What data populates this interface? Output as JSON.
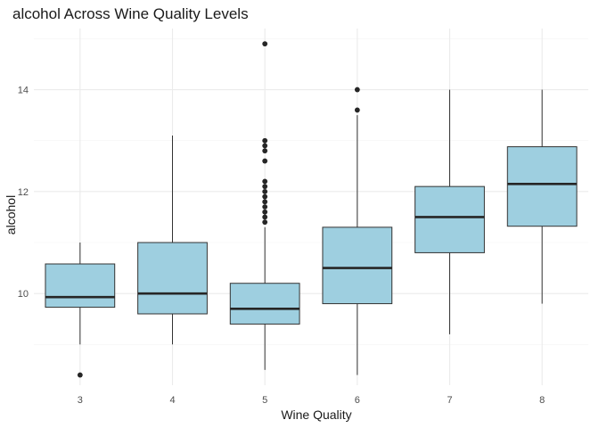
{
  "chart_data": {
    "type": "boxplot",
    "title": "alcohol Across Wine Quality Levels",
    "xlabel": "Wine Quality",
    "ylabel": "alcohol",
    "categories": [
      "3",
      "4",
      "5",
      "6",
      "7",
      "8"
    ],
    "ylim": [
      8.2,
      15.2
    ],
    "yticks": [
      10,
      12,
      14
    ],
    "yticks_minor": [
      9,
      11,
      13,
      15
    ],
    "grid": true,
    "fill_color": "#9ecfe0",
    "line_color": "#333333",
    "boxes": [
      {
        "category": "3",
        "whisker_low": 9.0,
        "q1": 9.73,
        "median": 9.93,
        "q3": 10.58,
        "whisker_high": 11.0,
        "outliers": [
          8.4
        ]
      },
      {
        "category": "4",
        "whisker_low": 9.0,
        "q1": 9.6,
        "median": 10.0,
        "q3": 11.0,
        "whisker_high": 13.1,
        "outliers": []
      },
      {
        "category": "5",
        "whisker_low": 8.5,
        "q1": 9.4,
        "median": 9.7,
        "q3": 10.2,
        "whisker_high": 11.3,
        "outliers": [
          11.4,
          11.5,
          11.6,
          11.7,
          11.8,
          11.9,
          12.0,
          12.1,
          12.2,
          12.6,
          12.8,
          12.9,
          13.0,
          14.9
        ]
      },
      {
        "category": "6",
        "whisker_low": 8.4,
        "q1": 9.8,
        "median": 10.5,
        "q3": 11.3,
        "whisker_high": 13.5,
        "outliers": [
          13.6,
          14.0
        ]
      },
      {
        "category": "7",
        "whisker_low": 9.2,
        "q1": 10.8,
        "median": 11.5,
        "q3": 12.1,
        "whisker_high": 14.0,
        "outliers": []
      },
      {
        "category": "8",
        "whisker_low": 9.8,
        "q1": 11.32,
        "median": 12.15,
        "q3": 12.88,
        "whisker_high": 14.0,
        "outliers": []
      }
    ]
  }
}
